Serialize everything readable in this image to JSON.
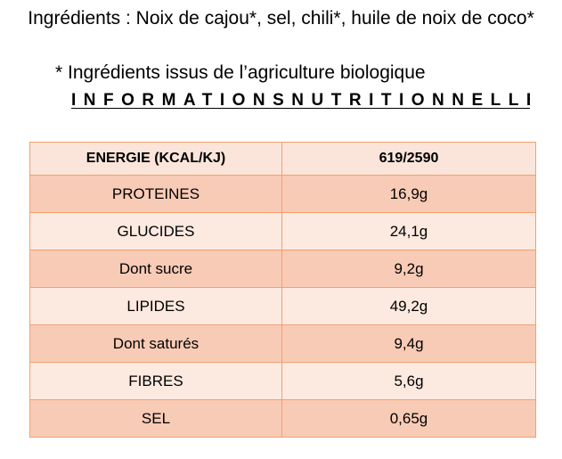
{
  "ingredients_text": "Ingrédients : Noix de cajou*, sel, chili*, huile de noix de coco*",
  "organic_note": "* Ingrédients issus de l’agriculture biologique",
  "section_title": "INFORMATIONSNUTRITIONNELLES",
  "table": {
    "header": {
      "label": "ENERGIE (KCAL/KJ)",
      "value": "619/2590"
    },
    "rows": [
      {
        "label": "PROTEINES",
        "value": "16,9g"
      },
      {
        "label": "GLUCIDES",
        "value": "24,1g"
      },
      {
        "label": "Dont sucre",
        "value": "9,2g"
      },
      {
        "label": "LIPIDES",
        "value": "49,2g"
      },
      {
        "label": "Dont saturés",
        "value": "9,4g"
      },
      {
        "label": "FIBRES",
        "value": "5,6g"
      },
      {
        "label": "SEL",
        "value": "0,65g"
      }
    ]
  },
  "colors": {
    "border": "#f2a070",
    "header_fill": "#fbe5db",
    "row_dark": "#f8cbb6",
    "row_light": "#fce9df"
  }
}
